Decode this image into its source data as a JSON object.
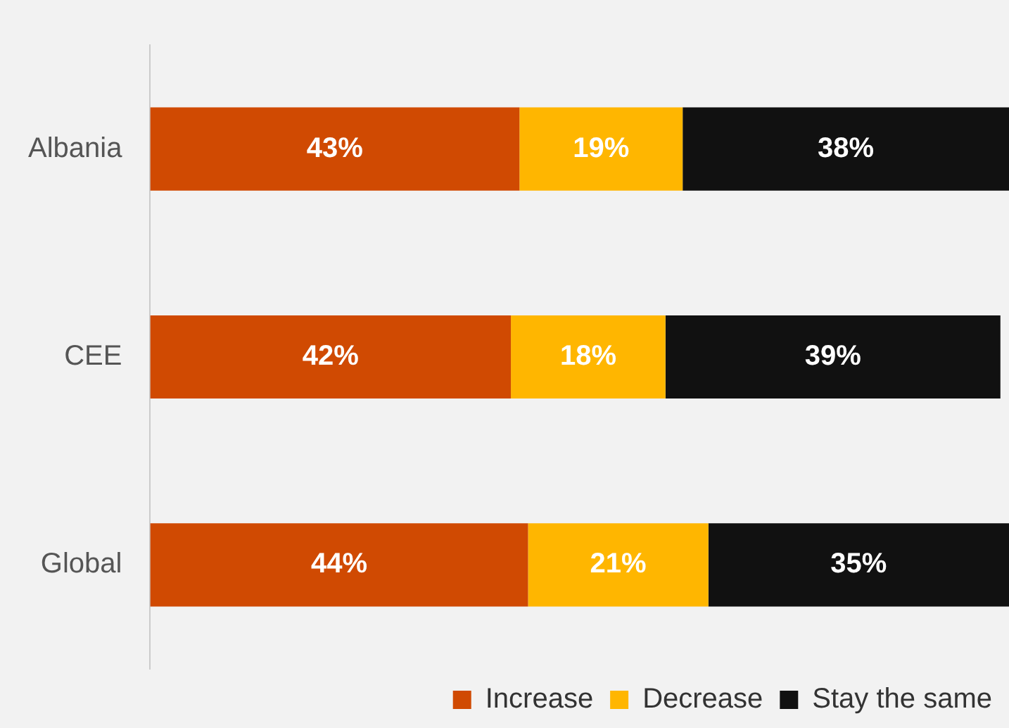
{
  "chart_data": {
    "type": "bar",
    "orientation": "horizontal",
    "stacked": true,
    "categories": [
      "Albania",
      "CEE",
      "Global"
    ],
    "series": [
      {
        "name": "Increase",
        "color": "#d04a02",
        "values": [
          43,
          42,
          44
        ],
        "value_labels": [
          "43%",
          "42%",
          "44%"
        ]
      },
      {
        "name": "Decrease",
        "color": "#ffb600",
        "values": [
          19,
          18,
          21
        ],
        "value_labels": [
          "19%",
          "18%",
          "21%"
        ]
      },
      {
        "name": "Stay the same",
        "color": "#111111",
        "values": [
          38,
          39,
          35
        ],
        "value_labels": [
          "38%",
          "39%",
          "35%"
        ]
      }
    ],
    "tick_labels": "y",
    "legend": "bottom right"
  }
}
